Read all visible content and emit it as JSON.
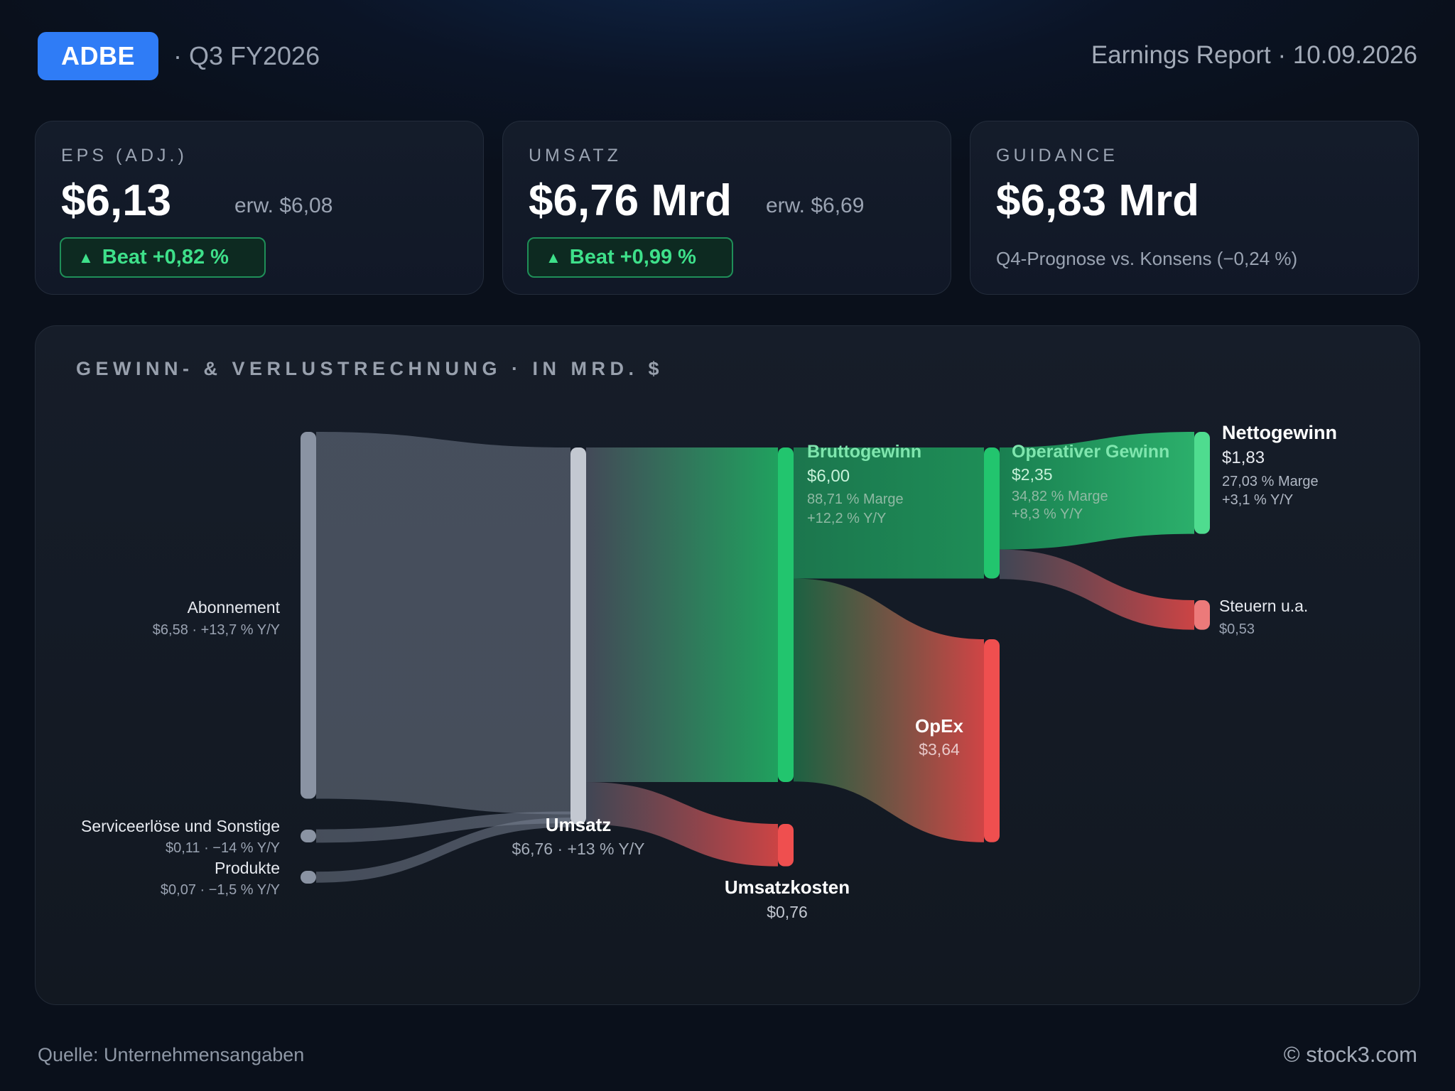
{
  "header": {
    "ticker": "ADBE",
    "period": "· Q3 FY2026",
    "report": "Earnings Report · 10.09.2026"
  },
  "cards": {
    "eps": {
      "label": "EPS (ADJ.)",
      "value": "$6,13",
      "estimate": "erw. $6,08",
      "beat": "Beat +0,82 %"
    },
    "revenue": {
      "label": "UMSATZ",
      "value": "$6,76 Mrd",
      "estimate": "erw. $6,69",
      "beat": "Beat +0,99 %"
    },
    "guidance": {
      "label": "GUIDANCE",
      "value": "$6,83 Mrd",
      "note": "Q4-Prognose vs. Konsens (−0,24 %)"
    }
  },
  "colors": {
    "accent": "#2f7cf6",
    "positive": "#22c56e",
    "negative": "#ef4f4f",
    "neutral": "#8a93a3"
  },
  "chart_data": {
    "type": "sankey",
    "title": "GEWINN- & VERLUSTRECHNUNG · IN MRD. $",
    "unit": "Mrd. $",
    "nodes": [
      {
        "id": "abo",
        "name": "Abonnement",
        "value": 6.58,
        "detail": "$6,58 · +13,7 % Y/Y"
      },
      {
        "id": "service",
        "name": "Serviceerlöse und Sonstige",
        "value": 0.11,
        "detail": "$0,11 · −14 % Y/Y"
      },
      {
        "id": "produkte",
        "name": "Produkte",
        "value": 0.07,
        "detail": "$0,07 · −1,5 % Y/Y"
      },
      {
        "id": "umsatz",
        "name": "Umsatz",
        "value": 6.76,
        "detail": "$6,76 · +13 % Y/Y"
      },
      {
        "id": "brutto",
        "name": "Bruttogewinn",
        "value": 6.0,
        "amount": "$6,00",
        "margin": "88,71 % Marge",
        "yoy": "+12,2 % Y/Y"
      },
      {
        "id": "kosten",
        "name": "Umsatzkosten",
        "value": 0.76,
        "amount": "$0,76"
      },
      {
        "id": "operativ",
        "name": "Operativer Gewinn",
        "value": 2.35,
        "amount": "$2,35",
        "margin": "34,82 % Marge",
        "yoy": "+8,3 % Y/Y"
      },
      {
        "id": "opex",
        "name": "OpEx",
        "value": 3.64,
        "amount": "$3,64"
      },
      {
        "id": "netto",
        "name": "Nettogewinn",
        "value": 1.83,
        "amount": "$1,83",
        "margin": "27,03 % Marge",
        "yoy": "+3,1 % Y/Y"
      },
      {
        "id": "steuern",
        "name": "Steuern u.a.",
        "value": 0.53,
        "amount": "$0,53"
      }
    ],
    "links": [
      {
        "source": "abo",
        "target": "umsatz",
        "value": 6.58
      },
      {
        "source": "service",
        "target": "umsatz",
        "value": 0.11
      },
      {
        "source": "produkte",
        "target": "umsatz",
        "value": 0.07
      },
      {
        "source": "umsatz",
        "target": "brutto",
        "value": 6.0
      },
      {
        "source": "umsatz",
        "target": "kosten",
        "value": 0.76
      },
      {
        "source": "brutto",
        "target": "operativ",
        "value": 2.35
      },
      {
        "source": "brutto",
        "target": "opex",
        "value": 3.64
      },
      {
        "source": "operativ",
        "target": "netto",
        "value": 1.83
      },
      {
        "source": "operativ",
        "target": "steuern",
        "value": 0.53
      }
    ]
  },
  "footer": {
    "source": "Quelle: Unternehmensangaben",
    "brand": "© stock3.com"
  }
}
